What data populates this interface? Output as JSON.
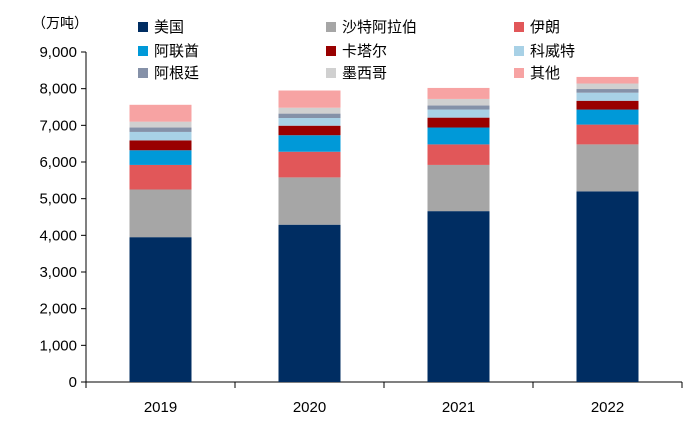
{
  "chart_data": {
    "type": "bar",
    "stacked": true,
    "unit_label": "（万吨）",
    "categories": [
      "2019",
      "2020",
      "2021",
      "2022"
    ],
    "ylim": [
      0,
      9000
    ],
    "yticks": [
      0,
      1000,
      2000,
      3000,
      4000,
      5000,
      6000,
      7000,
      8000,
      9000
    ],
    "ytick_labels": [
      "0",
      "1,000",
      "2,000",
      "3,000",
      "4,000",
      "5,000",
      "6,000",
      "7,000",
      "8,000",
      "9,000"
    ],
    "grid": false,
    "legend_position": "top",
    "series": [
      {
        "name": "美国",
        "color": "#002d62",
        "values": [
          3950,
          4290,
          4660,
          5200
        ]
      },
      {
        "name": "沙特阿拉伯",
        "color": "#a6a6a6",
        "values": [
          1300,
          1290,
          1260,
          1280
        ]
      },
      {
        "name": "伊朗",
        "color": "#e15759",
        "values": [
          670,
          700,
          560,
          540
        ]
      },
      {
        "name": "阿联酋",
        "color": "#0099d8",
        "values": [
          400,
          450,
          460,
          410
        ]
      },
      {
        "name": "卡塔尔",
        "color": "#990000",
        "values": [
          270,
          260,
          270,
          240
        ]
      },
      {
        "name": "科威特",
        "color": "#a8d1e6",
        "values": [
          230,
          210,
          220,
          220
        ]
      },
      {
        "name": "阿根廷",
        "color": "#8591a8",
        "values": [
          120,
          120,
          110,
          100
        ]
      },
      {
        "name": "墨西哥",
        "color": "#d0d0d0",
        "values": [
          160,
          160,
          180,
          150
        ]
      },
      {
        "name": "其他",
        "color": "#f7a3a3",
        "values": [
          460,
          470,
          300,
          180
        ]
      }
    ]
  }
}
